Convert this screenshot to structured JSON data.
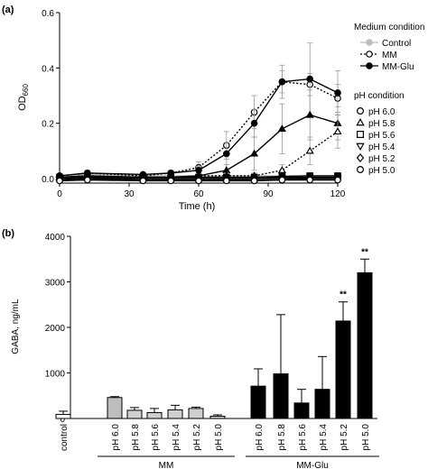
{
  "colors": {
    "axis": "#000000",
    "gray": "#bdbdbd",
    "light_gray": "#cfcfcf",
    "black": "#000000",
    "white": "#ffffff"
  },
  "chart_data": [
    {
      "panel": "(a)",
      "type": "line",
      "xlabel": "Time (h)",
      "ylabel_main": "OD",
      "ylabel_sub": "660",
      "xlim": [
        0,
        120
      ],
      "ylim": [
        0,
        0.6
      ],
      "xticks": [
        0,
        30,
        60,
        90,
        120
      ],
      "yticks": [
        0.0,
        0.2,
        0.4,
        0.6
      ],
      "ytick_labels": [
        "0.0",
        "0.2",
        "0.4",
        "0.6"
      ],
      "time": [
        0,
        12,
        36,
        48,
        60,
        72,
        84,
        96,
        108,
        120
      ],
      "legend": {
        "medium_title": "Medium condition",
        "medium_items": [
          {
            "name": "Control",
            "marker": "circle-filled",
            "color": "#bdbdbd",
            "line": "solid"
          },
          {
            "name": "MM",
            "marker": "circle-open",
            "color": "#000000",
            "line": "dotted"
          },
          {
            "name": "MM-Glu",
            "marker": "circle-filled",
            "color": "#000000",
            "line": "solid"
          }
        ],
        "ph_title": "pH condition",
        "ph_items": [
          {
            "name": "pH 6.0",
            "marker": "circle"
          },
          {
            "name": "pH 5.8",
            "marker": "triangle-up"
          },
          {
            "name": "pH 5.6",
            "marker": "square"
          },
          {
            "name": "pH 5.4",
            "marker": "triangle-down"
          },
          {
            "name": "pH 5.2",
            "marker": "diamond"
          },
          {
            "name": "pH 5.0",
            "marker": "circle"
          }
        ]
      },
      "series": [
        {
          "medium": "Control",
          "marker": "circle",
          "fill": "#bdbdbd",
          "line": "solid",
          "color": "#bdbdbd",
          "values": [
            0.01,
            0.015,
            0.01,
            0.01,
            0.01,
            0.01,
            0.01,
            0.01,
            0.01,
            0.01
          ],
          "errors": [
            0,
            0,
            0,
            0,
            0,
            0,
            0,
            0,
            0,
            0
          ]
        },
        {
          "medium": "MM",
          "ph": "pH 6.0",
          "marker": "circle",
          "fill": "open",
          "line": "dotted",
          "values": [
            0.01,
            0.02,
            0.01,
            0.02,
            0.04,
            0.12,
            0.24,
            0.35,
            0.34,
            0.29
          ],
          "errors": [
            0.005,
            0.01,
            0.005,
            0.01,
            0.02,
            0.05,
            0.06,
            0.04,
            0.04,
            0.05
          ]
        },
        {
          "medium": "MM-Glu",
          "ph": "pH 6.0",
          "marker": "circle",
          "fill": "#000000",
          "line": "solid",
          "values": [
            0.01,
            0.02,
            0.015,
            0.02,
            0.03,
            0.09,
            0.2,
            0.35,
            0.36,
            0.31
          ],
          "errors": [
            0.005,
            0.01,
            0.005,
            0.01,
            0.015,
            0.04,
            0.05,
            0.06,
            0.13,
            0.08
          ]
        },
        {
          "medium": "MM-Glu",
          "ph": "pH 5.8",
          "marker": "triangle-up",
          "fill": "#000000",
          "line": "solid",
          "values": [
            0.005,
            0.01,
            0.005,
            0.005,
            0.01,
            0.03,
            0.09,
            0.18,
            0.23,
            0.2
          ],
          "errors": [
            0,
            0.005,
            0,
            0,
            0.005,
            0.02,
            0.06,
            0.09,
            0.09,
            0.06
          ]
        },
        {
          "medium": "MM",
          "ph": "pH 5.8",
          "marker": "triangle-up",
          "fill": "open",
          "line": "dotted",
          "values": [
            0.005,
            0.01,
            0.005,
            0.005,
            0.01,
            0.01,
            0.01,
            0.03,
            0.1,
            0.17
          ],
          "errors": [
            0,
            0,
            0,
            0,
            0,
            0.01,
            0.01,
            0.02,
            0.05,
            0.06
          ]
        },
        {
          "medium": "MM",
          "ph": "pH 5.6",
          "marker": "square",
          "fill": "open",
          "line": "solid",
          "values": [
            0.0,
            0.005,
            0.0,
            0.0,
            0.0,
            0.0,
            0.0,
            0.005,
            0.005,
            0.005
          ],
          "errors": [
            0,
            0,
            0,
            0,
            0,
            0,
            0,
            0,
            0,
            0
          ]
        },
        {
          "medium": "MM-Glu",
          "ph": "pH 5.6",
          "marker": "square",
          "fill": "#000000",
          "line": "solid",
          "values": [
            0.005,
            0.008,
            0.005,
            0.005,
            0.005,
            0.005,
            0.005,
            0.008,
            0.01,
            0.01
          ],
          "errors": [
            0,
            0,
            0,
            0,
            0,
            0,
            0,
            0,
            0,
            0
          ]
        },
        {
          "medium": "MM",
          "ph": "pH 5.4",
          "marker": "triangle-down",
          "fill": "open",
          "line": "solid",
          "values": [
            -0.005,
            0.0,
            -0.005,
            -0.005,
            -0.005,
            -0.005,
            -0.005,
            -0.005,
            0.0,
            0.0
          ],
          "errors": [
            0,
            0,
            0,
            0,
            0,
            0,
            0,
            0,
            0,
            0
          ]
        },
        {
          "medium": "MM-Glu",
          "ph": "pH 5.2",
          "marker": "diamond",
          "fill": "#000000",
          "line": "solid",
          "values": [
            0.0,
            0.003,
            0.0,
            0.0,
            0.0,
            0.0,
            0.0,
            0.0,
            0.003,
            0.003
          ],
          "errors": [
            0,
            0,
            0,
            0,
            0,
            0,
            0,
            0,
            0,
            0
          ]
        },
        {
          "medium": "MM",
          "ph": "pH 5.0",
          "marker": "circle",
          "fill": "open",
          "line": "solid",
          "values": [
            -0.008,
            -0.005,
            -0.008,
            -0.008,
            -0.008,
            -0.008,
            -0.008,
            -0.005,
            -0.005,
            -0.005
          ],
          "errors": [
            0,
            0,
            0,
            0,
            0,
            0,
            0,
            0,
            0,
            0
          ]
        }
      ]
    },
    {
      "panel": "(b)",
      "type": "bar",
      "ylabel": "GABA, ng/mL",
      "ylim": [
        0,
        4000
      ],
      "yticks": [
        0,
        1000,
        2000,
        3000,
        4000
      ],
      "categories": [
        "control",
        "pH 6.0",
        "pH 5.8",
        "pH 5.6",
        "pH 5.4",
        "pH 5.2",
        "pH 5.0",
        "pH 6.0",
        "pH 5.8",
        "pH 5.6",
        "pH 5.4",
        "pH 5.2",
        "pH 5.0"
      ],
      "groups": [
        "control",
        "MM",
        "MM",
        "MM",
        "MM",
        "MM",
        "MM",
        "MM-Glu",
        "MM-Glu",
        "MM-Glu",
        "MM-Glu",
        "MM-Glu",
        "MM-Glu"
      ],
      "group_labels": [
        "MM",
        "MM-Glu"
      ],
      "values": [
        90,
        460,
        180,
        130,
        190,
        220,
        50,
        710,
        980,
        340,
        640,
        2140,
        3200
      ],
      "errors": [
        70,
        20,
        60,
        90,
        100,
        30,
        30,
        380,
        1300,
        300,
        720,
        420,
        300
      ],
      "fills": [
        "#ffffff",
        "#bdbdbd",
        "#cfcfcf",
        "#cfcfcf",
        "#cfcfcf",
        "#cfcfcf",
        "#cfcfcf",
        "#000000",
        "#000000",
        "#000000",
        "#000000",
        "#000000",
        "#000000"
      ],
      "annotations": [
        "",
        "",
        "",
        "",
        "",
        "",
        "",
        "",
        "",
        "",
        "",
        "**",
        "**"
      ]
    }
  ]
}
